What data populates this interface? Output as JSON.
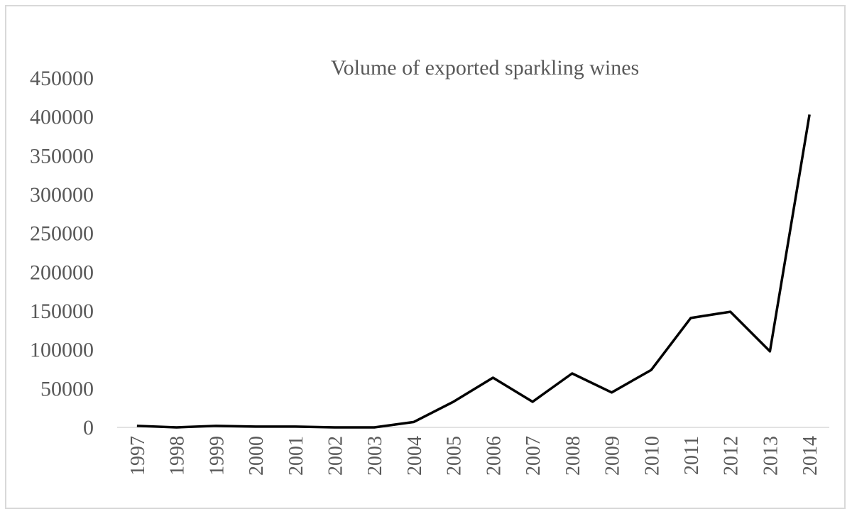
{
  "chart_data": {
    "type": "line",
    "title": "Volume of exported sparkling wines",
    "categories": [
      "1997",
      "1998",
      "1999",
      "2000",
      "2001",
      "2002",
      "2003",
      "2004",
      "2005",
      "2006",
      "2007",
      "2008",
      "2009",
      "2010",
      "2011",
      "2012",
      "2013",
      "2014"
    ],
    "values": [
      2000,
      0,
      2000,
      1000,
      1000,
      0,
      0,
      7000,
      33000,
      64000,
      33000,
      69500,
      45000,
      74000,
      141000,
      149000,
      98000,
      403000
    ],
    "color": "#000000",
    "ylim": [
      0,
      450000
    ],
    "yticks": [
      0,
      50000,
      100000,
      150000,
      200000,
      250000,
      300000,
      350000,
      400000,
      450000
    ],
    "grid": false
  }
}
